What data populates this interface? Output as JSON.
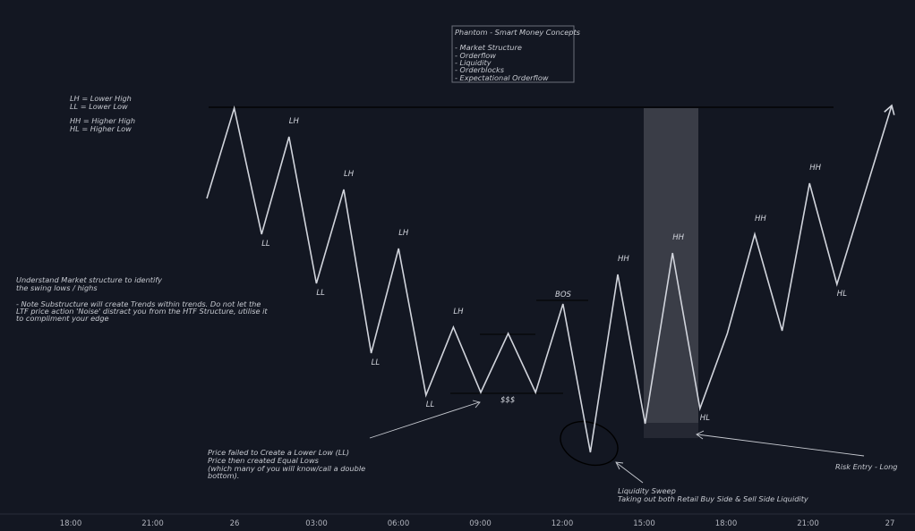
{
  "chart_data": {
    "type": "line",
    "title": "Phantom - Smart Money Concepts",
    "title_items": [
      "- Market Structure",
      "- Orderflow",
      "- Liquidity",
      "- Orderblocks",
      "- Expectational Orderflow"
    ],
    "legend_notes": [
      "LH = Lower High",
      "LL = Lower Low",
      "HH = Higher High",
      "HL = Higher Low"
    ],
    "x_ticks": [
      "18:00",
      "21:00",
      "26",
      "03:00",
      "06:00",
      "09:00",
      "12:00",
      "15:00",
      "18:00",
      "21:00",
      "27"
    ],
    "series": [
      {
        "values": [
          {
            "t": 24.0,
            "y": 222
          },
          {
            "t": 25.0,
            "y": 121
          },
          {
            "t": 26.0,
            "y": 262
          },
          {
            "t": 27.0,
            "y": 153
          },
          {
            "t": 28.0,
            "y": 317
          },
          {
            "t": 29.0,
            "y": 212
          },
          {
            "t": 30.0,
            "y": 395
          },
          {
            "t": 31.0,
            "y": 278
          },
          {
            "t": 32.0,
            "y": 442
          },
          {
            "t": 33.0,
            "y": 366
          },
          {
            "t": 34.0,
            "y": 439
          },
          {
            "t": 35.0,
            "y": 373
          },
          {
            "t": 36.0,
            "y": 439
          },
          {
            "t": 37.0,
            "y": 340
          },
          {
            "t": 38.0,
            "y": 506
          },
          {
            "t": 39.0,
            "y": 307
          },
          {
            "t": 40.0,
            "y": 474
          },
          {
            "t": 41.0,
            "y": 283
          },
          {
            "t": 42.0,
            "y": 457
          },
          {
            "t": 43.0,
            "y": 373
          },
          {
            "t": 44.0,
            "y": 262
          },
          {
            "t": 45.0,
            "y": 370
          },
          {
            "t": 46.0,
            "y": 205
          },
          {
            "t": 47.0,
            "y": 318
          },
          {
            "t": 49.0,
            "y": 118
          }
        ]
      }
    ],
    "swing_labels": [
      {
        "text": "LH",
        "t": 27.0
      },
      {
        "text": "LL",
        "t": 26.0
      },
      {
        "text": "LH",
        "t": 29.0
      },
      {
        "text": "LL",
        "t": 28.0
      },
      {
        "text": "LH",
        "t": 31.0
      },
      {
        "text": "LL",
        "t": 30.0
      },
      {
        "text": "LL",
        "t": 32.0
      },
      {
        "text": "LH",
        "t": 33.0
      },
      {
        "text": "HH",
        "t": 39.0
      },
      {
        "text": "HH",
        "t": 41.0
      },
      {
        "text": "HL",
        "t": 42.0
      },
      {
        "text": "HH",
        "t": 44.0
      },
      {
        "text": "HH",
        "t": 46.0
      },
      {
        "text": "HL",
        "t": 47.0
      }
    ],
    "annotations": {
      "bos": "BOS",
      "equal_lows": "$$$",
      "structure_note": [
        "Understand Market structure to identify",
        "the swing lows / highs",
        "",
        "- Note Substructure will create Trends within trends. Do not let the",
        "LTF price action 'Noise' distract you from the HTF Structure, utilise it",
        "to compliment your edge"
      ],
      "failed_note": [
        "Price failed to Create a Lower Low (LL)",
        "Price then created Equal Lows",
        "(which many of you will know/call a double",
        "bottom)."
      ],
      "sweep_note": [
        "Liquidity Sweep",
        "Taking out both Retail Buy Side & Sell Side Liquidity"
      ],
      "risk_entry": "Risk Entry - Long"
    },
    "grid": false,
    "colors": {
      "background": "#131722",
      "line": "#d1d4dc",
      "text": "#c7cad1",
      "zone": "#3a3d47",
      "zone_bottom": "#252833"
    }
  }
}
